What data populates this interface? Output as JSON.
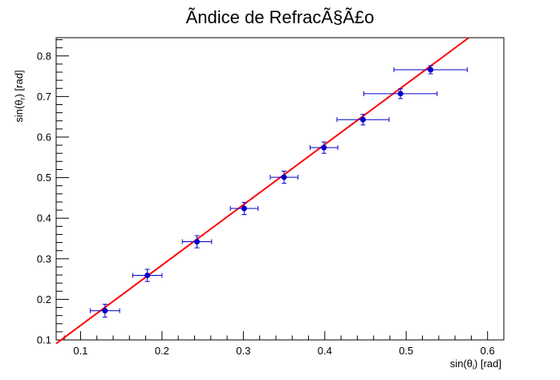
{
  "chart_data": {
    "type": "scatter",
    "title": "Ãndice de RefracÃ§Ã£o",
    "xlabel": {
      "pre": "sin(θ",
      "sub": "i",
      "post": ") [rad]"
    },
    "ylabel": {
      "pre": "sin(θ",
      "sub": "r",
      "post": ") [rad]"
    },
    "xlim": [
      0.07,
      0.62
    ],
    "ylim": [
      0.1,
      0.845
    ],
    "x_ticks": [
      "0.1",
      "0.2",
      "0.3",
      "0.4",
      "0.5",
      "0.6"
    ],
    "y_ticks": [
      "0.1",
      "0.2",
      "0.3",
      "0.4",
      "0.5",
      "0.6",
      "0.7",
      "0.8"
    ],
    "grid": false,
    "series": [
      {
        "points": [
          {
            "x": 0.13,
            "y": 0.172,
            "ex": 0.018,
            "ey": 0.016
          },
          {
            "x": 0.182,
            "y": 0.259,
            "ex": 0.018,
            "ey": 0.015
          },
          {
            "x": 0.243,
            "y": 0.342,
            "ex": 0.018,
            "ey": 0.015
          },
          {
            "x": 0.301,
            "y": 0.424,
            "ex": 0.017,
            "ey": 0.015
          },
          {
            "x": 0.35,
            "y": 0.501,
            "ex": 0.017,
            "ey": 0.015
          },
          {
            "x": 0.399,
            "y": 0.574,
            "ex": 0.017,
            "ey": 0.014
          },
          {
            "x": 0.447,
            "y": 0.643,
            "ex": 0.032,
            "ey": 0.013
          },
          {
            "x": 0.493,
            "y": 0.707,
            "ex": 0.045,
            "ey": 0.012
          },
          {
            "x": 0.53,
            "y": 0.766,
            "ex": 0.045,
            "ey": 0.01
          }
        ]
      }
    ],
    "fit": {
      "x1": 0.07,
      "y1": 0.091,
      "x2": 0.577,
      "y2": 0.845
    },
    "colors": {
      "points": "#0000cc",
      "errorbars": "#0000cc",
      "fit": "#ff0000"
    }
  }
}
